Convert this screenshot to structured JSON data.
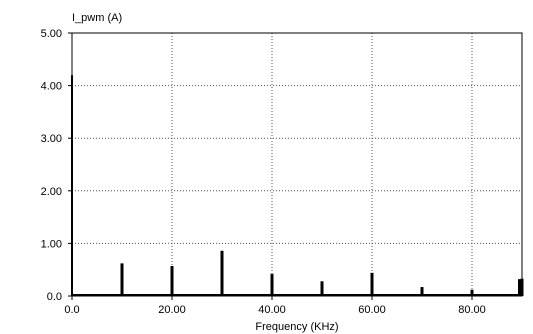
{
  "chart_data": {
    "type": "line",
    "title": "",
    "ylabel": "I_pwm (A)",
    "xlabel": "Frequency (KHz)",
    "xlim": [
      0,
      90
    ],
    "ylim": [
      0,
      5
    ],
    "x_ticks": [
      0,
      20,
      40,
      60,
      80
    ],
    "x_tick_labels": [
      "0.0",
      "20.00",
      "40.00",
      "60.00",
      "80.00"
    ],
    "y_ticks": [
      0,
      1,
      2,
      3,
      4,
      5
    ],
    "y_tick_labels": [
      "0.0",
      "1.00",
      "2.00",
      "3.00",
      "4.00",
      "5.00"
    ],
    "grid": true,
    "grid_style": "dotted",
    "series": [
      {
        "color": "#000000",
        "points": [
          [
            0.0,
            4.2
          ],
          [
            10.0,
            0.62
          ],
          [
            20.0,
            0.57
          ],
          [
            30.0,
            0.86
          ],
          [
            40.0,
            0.42
          ],
          [
            50.0,
            0.28
          ],
          [
            60.0,
            0.44
          ],
          [
            70.0,
            0.17
          ],
          [
            80.0,
            0.12
          ],
          [
            89.5,
            0.32
          ],
          [
            90.0,
            0.33
          ]
        ]
      }
    ]
  }
}
